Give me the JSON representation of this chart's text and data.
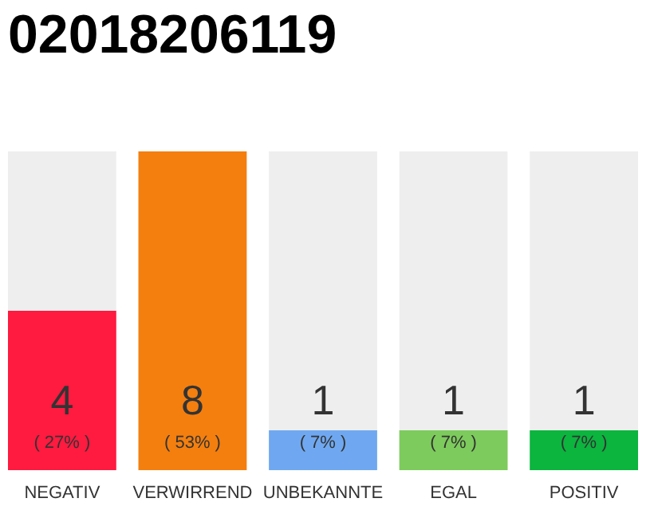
{
  "chart_data": {
    "type": "bar",
    "title": "02018206119",
    "categories": [
      "NEGATIV",
      "VERWIRREND",
      "UNBEKANNTE",
      "EGAL",
      "POSITIV"
    ],
    "values": [
      4,
      8,
      1,
      1,
      1
    ],
    "colors": [
      "#ff1a40",
      "#f47f0e",
      "#6fa8f0",
      "#7dcb5c",
      "#0bb53e"
    ],
    "data_labels": true,
    "annotations": [
      "( 27% )",
      "( 53% )",
      "( 7% )",
      "( 7% )",
      "( 7% )"
    ],
    "tick_labels": "x",
    "grid": false
  }
}
